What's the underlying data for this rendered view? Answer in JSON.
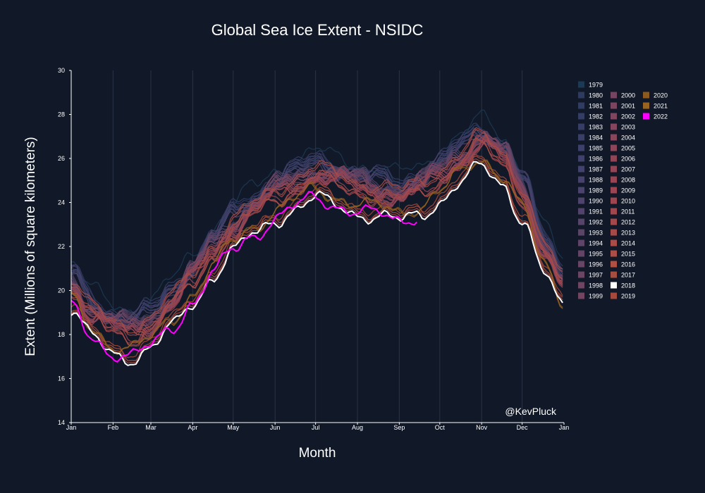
{
  "chart_data": {
    "type": "line",
    "title": "Global Sea Ice Extent - NSIDC",
    "xlabel": "Month",
    "ylabel": "Extent (Millions of square kilometers)",
    "watermark": "@KevPluck",
    "ylim": [
      14,
      30
    ],
    "y_ticks": [
      14,
      16,
      18,
      20,
      22,
      24,
      26,
      28,
      30
    ],
    "xlim": [
      0,
      365
    ],
    "x_ticks": [
      {
        "label": "Jan",
        "day": 0
      },
      {
        "label": "Feb",
        "day": 31
      },
      {
        "label": "Mar",
        "day": 59
      },
      {
        "label": "Apr",
        "day": 90
      },
      {
        "label": "May",
        "day": 120
      },
      {
        "label": "Jun",
        "day": 151
      },
      {
        "label": "Jul",
        "day": 181
      },
      {
        "label": "Aug",
        "day": 212
      },
      {
        "label": "Sep",
        "day": 243
      },
      {
        "label": "Oct",
        "day": 273
      },
      {
        "label": "Nov",
        "day": 304
      },
      {
        "label": "Dec",
        "day": 334
      },
      {
        "label": "Jan",
        "day": 365
      }
    ],
    "grid": "vertical",
    "legend_placement": "right",
    "climatology_day": [
      0,
      15,
      31,
      45,
      59,
      75,
      90,
      105,
      120,
      135,
      151,
      166,
      181,
      196,
      212,
      227,
      243,
      258,
      273,
      288,
      304,
      320,
      334,
      350,
      365
    ],
    "series": [
      {
        "name": "1979",
        "color": "#1c3a55",
        "offset": 0.9,
        "end": 365
      },
      {
        "name": "1980",
        "color": "#2e3a5e",
        "offset": 0.55,
        "end": 365
      },
      {
        "name": "1981",
        "color": "#313c62",
        "offset": 0.35,
        "end": 365
      },
      {
        "name": "1982",
        "color": "#343d65",
        "offset": 0.7,
        "end": 365
      },
      {
        "name": "1983",
        "color": "#373e66",
        "offset": 0.45,
        "end": 365
      },
      {
        "name": "1984",
        "color": "#3a3f68",
        "offset": 0.25,
        "end": 365
      },
      {
        "name": "1985",
        "color": "#3d406a",
        "offset": 0.4,
        "end": 365
      },
      {
        "name": "1986",
        "color": "#40416b",
        "offset": 0.6,
        "end": 365
      },
      {
        "name": "1987",
        "color": "#43426c",
        "offset": 0.3,
        "end": 365
      },
      {
        "name": "1988",
        "color": "#46426c",
        "offset": 0.5,
        "end": 365
      },
      {
        "name": "1989",
        "color": "#4a436c",
        "offset": 0.2,
        "end": 365
      },
      {
        "name": "1990",
        "color": "#4e436b",
        "offset": 0.35,
        "end": 365
      },
      {
        "name": "1991",
        "color": "#52436a",
        "offset": 0.15,
        "end": 365
      },
      {
        "name": "1992",
        "color": "#564469",
        "offset": 0.3,
        "end": 365
      },
      {
        "name": "1993",
        "color": "#5a4468",
        "offset": 0.1,
        "end": 365
      },
      {
        "name": "1994",
        "color": "#5e4567",
        "offset": 0.25,
        "end": 365
      },
      {
        "name": "1995",
        "color": "#624566",
        "offset": 0.05,
        "end": 365
      },
      {
        "name": "1996",
        "color": "#664565",
        "offset": 0.2,
        "end": 365
      },
      {
        "name": "1997",
        "color": "#6a4664",
        "offset": -0.05,
        "end": 365
      },
      {
        "name": "1998",
        "color": "#6e4663",
        "offset": 0.15,
        "end": 365
      },
      {
        "name": "1999",
        "color": "#724662",
        "offset": 0.0,
        "end": 365
      },
      {
        "name": "2000",
        "color": "#774561",
        "offset": -0.1,
        "end": 365
      },
      {
        "name": "2001",
        "color": "#7b4560",
        "offset": 0.1,
        "end": 365
      },
      {
        "name": "2002",
        "color": "#80455f",
        "offset": -0.15,
        "end": 365
      },
      {
        "name": "2003",
        "color": "#84455d",
        "offset": 0.05,
        "end": 365
      },
      {
        "name": "2004",
        "color": "#88455b",
        "offset": -0.2,
        "end": 365
      },
      {
        "name": "2005",
        "color": "#8c4559",
        "offset": -0.25,
        "end": 365
      },
      {
        "name": "2006",
        "color": "#904557",
        "offset": -0.1,
        "end": 365
      },
      {
        "name": "2007",
        "color": "#944555",
        "offset": -0.35,
        "end": 365
      },
      {
        "name": "2008",
        "color": "#974553",
        "offset": -0.2,
        "end": 365
      },
      {
        "name": "2009",
        "color": "#9a4551",
        "offset": -0.3,
        "end": 365
      },
      {
        "name": "2010",
        "color": "#9d464f",
        "offset": -0.25,
        "end": 365
      },
      {
        "name": "2011",
        "color": "#a0474d",
        "offset": -0.45,
        "end": 365
      },
      {
        "name": "2012",
        "color": "#a3484b",
        "offset": -0.4,
        "end": 365
      },
      {
        "name": "2013",
        "color": "#a64a49",
        "offset": 0.05,
        "end": 365
      },
      {
        "name": "2014",
        "color": "#a94c47",
        "offset": 0.15,
        "end": 365
      },
      {
        "name": "2015",
        "color": "#ac4e45",
        "offset": -0.3,
        "end": 365
      },
      {
        "name": "2016",
        "color": "#b05043",
        "offset": -1.1,
        "end": 365
      },
      {
        "name": "2017",
        "color": "#a84e40",
        "offset": -1.2,
        "end": 365
      },
      {
        "name": "2018",
        "color": "#ffffff",
        "offset": -1.3,
        "end": 365
      },
      {
        "name": "2019",
        "color": "#a4493b",
        "offset": -0.95,
        "end": 365
      },
      {
        "name": "2020",
        "color": "#8c5a1e",
        "offset": -0.85,
        "end": 365
      },
      {
        "name": "2021",
        "color": "#9a6420",
        "offset": -0.9,
        "end": 365
      },
      {
        "name": "2022",
        "color": "#ff00ff",
        "offset": -1.25,
        "end": 257
      }
    ]
  }
}
